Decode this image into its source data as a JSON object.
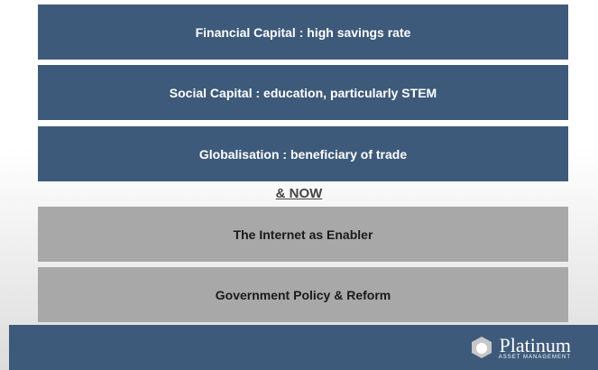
{
  "blocks": [
    {
      "label": "Financial Capital : high savings rate"
    },
    {
      "label": "Social Capital : education, particularly STEM"
    },
    {
      "label": "Globalisation : beneficiary of trade"
    }
  ],
  "separator": "& NOW",
  "lower_blocks": [
    {
      "label": "The Internet as Enabler"
    },
    {
      "label": "Government Policy & Reform"
    }
  ],
  "footer": {
    "brand": "Platinum",
    "tagline": "ASSET MANAGEMENT"
  }
}
